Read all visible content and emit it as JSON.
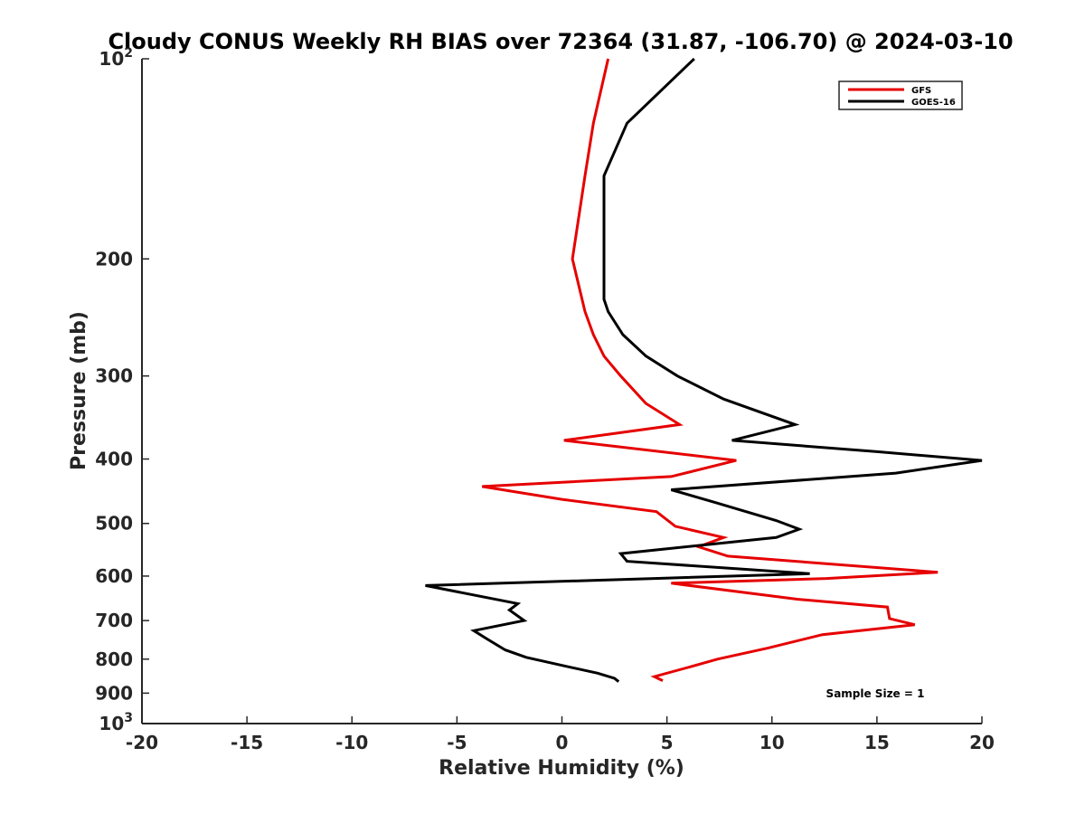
{
  "chart_data": {
    "type": "line",
    "title": "Cloudy CONUS Weekly RH BIAS over 72364 (31.87, -106.70) @ 2024-03-10",
    "xlabel": "Relative Humidity (%)",
    "ylabel": "Pressure (mb)",
    "xlim": [
      -20,
      20
    ],
    "ylim": [
      1000,
      100
    ],
    "y_scale": "log",
    "y_reversed": true,
    "grid": false,
    "legend_position": "top-right",
    "x_ticks": [
      -20,
      -15,
      -10,
      -5,
      0,
      5,
      10,
      15,
      20
    ],
    "x_tick_labels": [
      "-20",
      "-15",
      "-10",
      "-5",
      "0",
      "5",
      "10",
      "15",
      "20"
    ],
    "y_ticks": [
      100,
      200,
      300,
      400,
      500,
      600,
      700,
      800,
      900,
      1000
    ],
    "y_tick_labels": [
      {
        "base": "10",
        "sup": "2"
      },
      {
        "base": "200",
        "sup": ""
      },
      {
        "base": "300",
        "sup": ""
      },
      {
        "base": "400",
        "sup": ""
      },
      {
        "base": "500",
        "sup": ""
      },
      {
        "base": "600",
        "sup": ""
      },
      {
        "base": "700",
        "sup": ""
      },
      {
        "base": "800",
        "sup": ""
      },
      {
        "base": "900",
        "sup": ""
      },
      {
        "base": "10",
        "sup": "3"
      }
    ],
    "series": [
      {
        "name": "GFS",
        "color": "#e60000",
        "points": [
          [
            2.2,
            100
          ],
          [
            1.5,
            125
          ],
          [
            1.1,
            150
          ],
          [
            0.5,
            200
          ],
          [
            1.1,
            240
          ],
          [
            1.5,
            260
          ],
          [
            2.0,
            280
          ],
          [
            2.8,
            300
          ],
          [
            4.0,
            330
          ],
          [
            5.6,
            355
          ],
          [
            0.1,
            375
          ],
          [
            8.3,
            402
          ],
          [
            5.2,
            425
          ],
          [
            -3.8,
            440
          ],
          [
            0.0,
            460
          ],
          [
            4.5,
            480
          ],
          [
            5.4,
            505
          ],
          [
            7.7,
            525
          ],
          [
            6.5,
            542
          ],
          [
            7.9,
            560
          ],
          [
            17.9,
            592
          ],
          [
            12.6,
            605
          ],
          [
            5.2,
            615
          ],
          [
            11.2,
            650
          ],
          [
            15.5,
            668
          ],
          [
            15.6,
            695
          ],
          [
            16.8,
            710
          ],
          [
            12.4,
            735
          ],
          [
            9.8,
            770
          ],
          [
            7.4,
            800
          ],
          [
            6.2,
            820
          ],
          [
            4.4,
            850
          ],
          [
            4.8,
            862
          ]
        ]
      },
      {
        "name": "GOES-16",
        "color": "#000000",
        "points": [
          [
            6.3,
            100
          ],
          [
            3.1,
            125
          ],
          [
            2.0,
            150
          ],
          [
            2.0,
            200
          ],
          [
            2.0,
            230
          ],
          [
            2.2,
            240
          ],
          [
            2.9,
            260
          ],
          [
            4.0,
            280
          ],
          [
            5.5,
            300
          ],
          [
            7.7,
            325
          ],
          [
            11.1,
            355
          ],
          [
            8.1,
            375
          ],
          [
            15.0,
            390
          ],
          [
            20.0,
            402
          ],
          [
            15.9,
            420
          ],
          [
            5.2,
            445
          ],
          [
            7.3,
            465
          ],
          [
            10.2,
            495
          ],
          [
            11.3,
            510
          ],
          [
            10.2,
            525
          ],
          [
            2.8,
            555
          ],
          [
            3.1,
            570
          ],
          [
            11.8,
            595
          ],
          [
            4.4,
            605
          ],
          [
            -6.5,
            620
          ],
          [
            -2.1,
            660
          ],
          [
            -2.5,
            675
          ],
          [
            -1.8,
            700
          ],
          [
            -4.2,
            725
          ],
          [
            -3.6,
            745
          ],
          [
            -2.7,
            775
          ],
          [
            -1.7,
            795
          ],
          [
            0.2,
            820
          ],
          [
            1.7,
            840
          ],
          [
            2.5,
            855
          ],
          [
            2.7,
            865
          ]
        ]
      }
    ],
    "annotations": [
      "Sample Size = 1"
    ]
  }
}
